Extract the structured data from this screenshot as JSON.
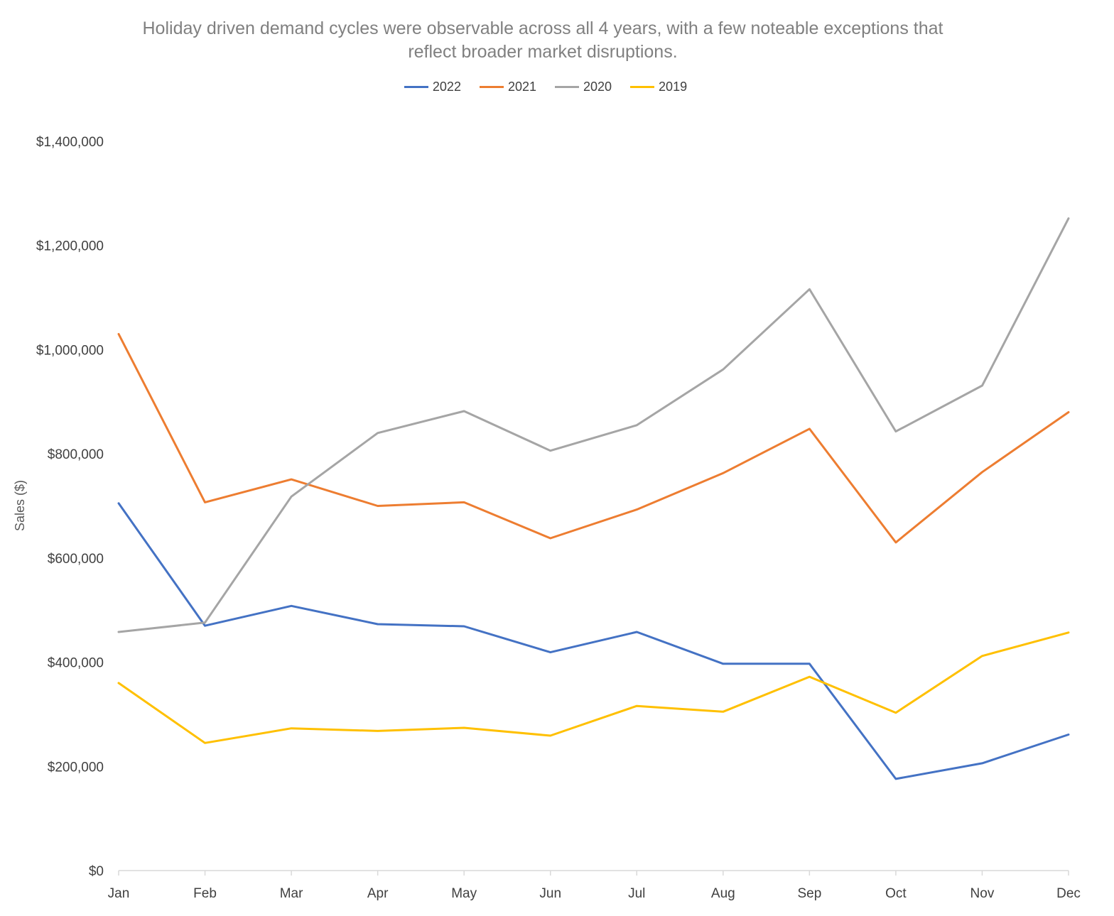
{
  "chart_data": {
    "type": "line",
    "title": "Holiday driven demand cycles were observable across all 4 years, with a few noteable exceptions that\nreflect broader market disruptions.",
    "xlabel": "",
    "ylabel": "Sales ($)",
    "ylim": [
      0,
      1400000
    ],
    "yticks": [
      0,
      200000,
      400000,
      600000,
      800000,
      1000000,
      1200000,
      1400000
    ],
    "ytick_labels": [
      "$0",
      "$200,000",
      "$400,000",
      "$600,000",
      "$800,000",
      "$1,000,000",
      "$1,200,000",
      "$1,400,000"
    ],
    "grid": false,
    "legend_position": "top",
    "categories": [
      "Jan",
      "Feb",
      "Mar",
      "Apr",
      "May",
      "Jun",
      "Jul",
      "Aug",
      "Sep",
      "Oct",
      "Nov",
      "Dec"
    ],
    "series": [
      {
        "name": "2022",
        "color": "#4472C4",
        "values": [
          705000,
          470000,
          508000,
          473000,
          469000,
          419000,
          458000,
          397000,
          397000,
          176000,
          206000,
          261000
        ]
      },
      {
        "name": "2021",
        "color": "#ED7D31",
        "values": [
          1030000,
          707000,
          751000,
          700000,
          707000,
          638000,
          693000,
          763000,
          848000,
          630000,
          765000,
          880000
        ]
      },
      {
        "name": "2020",
        "color": "#A5A5A5",
        "values": [
          458000,
          476000,
          718000,
          840000,
          882000,
          806000,
          855000,
          962000,
          1116000,
          843000,
          931000,
          1252000
        ]
      },
      {
        "name": "2019",
        "color": "#FFC000",
        "values": [
          360000,
          245000,
          273000,
          268000,
          274000,
          259000,
          316000,
          305000,
          372000,
          303000,
          412000,
          457000
        ]
      }
    ]
  }
}
